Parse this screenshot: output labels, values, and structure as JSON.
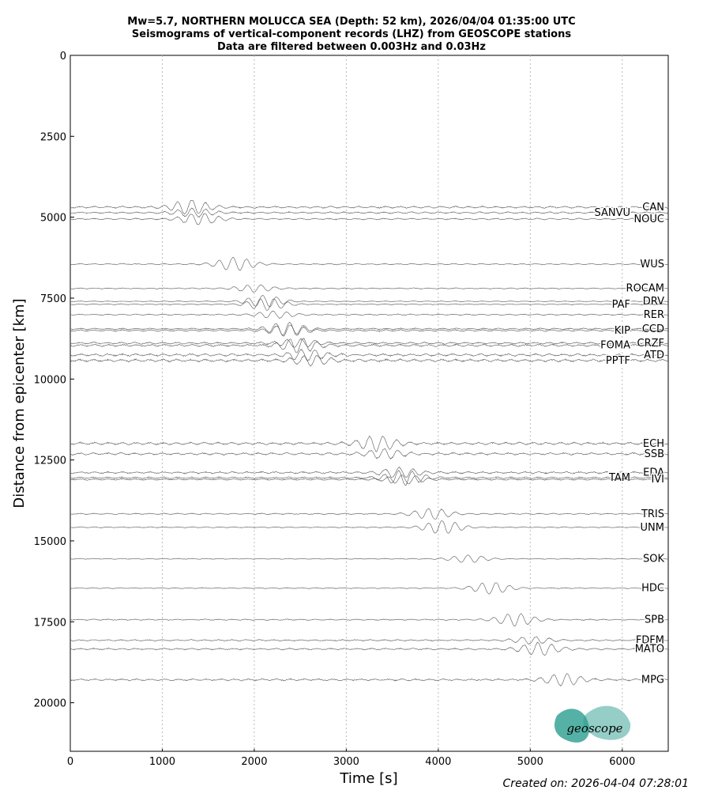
{
  "chart_data": {
    "type": "seismogram",
    "title": "Mw=5.7, NORTHERN MOLUCCA SEA (Depth: 52 km), 2026/04/04 01:35:00 UTC",
    "subtitle": "Seismograms of vertical-component records (LHZ) from GEOSCOPE stations",
    "subtitle2": "Data are filtered between 0.003Hz and 0.03Hz",
    "x_label": "Time [s]",
    "y_label": "Distance from epicenter [km]",
    "footer": "Created on: 2026-04-04 07:28:01",
    "logo": "geoscope",
    "xlim": [
      0,
      6500
    ],
    "xticks": [
      0,
      1000,
      2000,
      3000,
      4000,
      5000,
      6000
    ],
    "ylim": [
      21500,
      0
    ],
    "yticks": [
      0,
      2500,
      5000,
      7500,
      10000,
      12500,
      15000,
      17500,
      20000
    ],
    "grid": true,
    "color": "#555555",
    "stations": [
      {
        "name": "CAN",
        "distance": 4690
      },
      {
        "name": "SANVU",
        "distance": 4860
      },
      {
        "name": "NOUC",
        "distance": 5055
      },
      {
        "name": "WUS",
        "distance": 6450
      },
      {
        "name": "ROCAM",
        "distance": 7200
      },
      {
        "name": "DRV",
        "distance": 7600
      },
      {
        "name": "PAF",
        "distance": 7690
      },
      {
        "name": "RER",
        "distance": 8010
      },
      {
        "name": "CCD",
        "distance": 8450
      },
      {
        "name": "KIP",
        "distance": 8500
      },
      {
        "name": "CRZF",
        "distance": 8890
      },
      {
        "name": "FOMA",
        "distance": 8960
      },
      {
        "name": "ATD",
        "distance": 9255
      },
      {
        "name": "PPTF",
        "distance": 9425
      },
      {
        "name": "ECH",
        "distance": 11990
      },
      {
        "name": "SSB",
        "distance": 12310
      },
      {
        "name": "EDA",
        "distance": 12890
      },
      {
        "name": "TAM",
        "distance": 13050
      },
      {
        "name": "IVI",
        "distance": 13100
      },
      {
        "name": "TRIS",
        "distance": 14165
      },
      {
        "name": "UNM",
        "distance": 14580
      },
      {
        "name": "SOK",
        "distance": 15555
      },
      {
        "name": "HDC",
        "distance": 16460
      },
      {
        "name": "SPB",
        "distance": 17435
      },
      {
        "name": "FDFM",
        "distance": 18070
      },
      {
        "name": "MATO",
        "distance": 18340
      },
      {
        "name": "MPG",
        "distance": 19290
      }
    ]
  }
}
